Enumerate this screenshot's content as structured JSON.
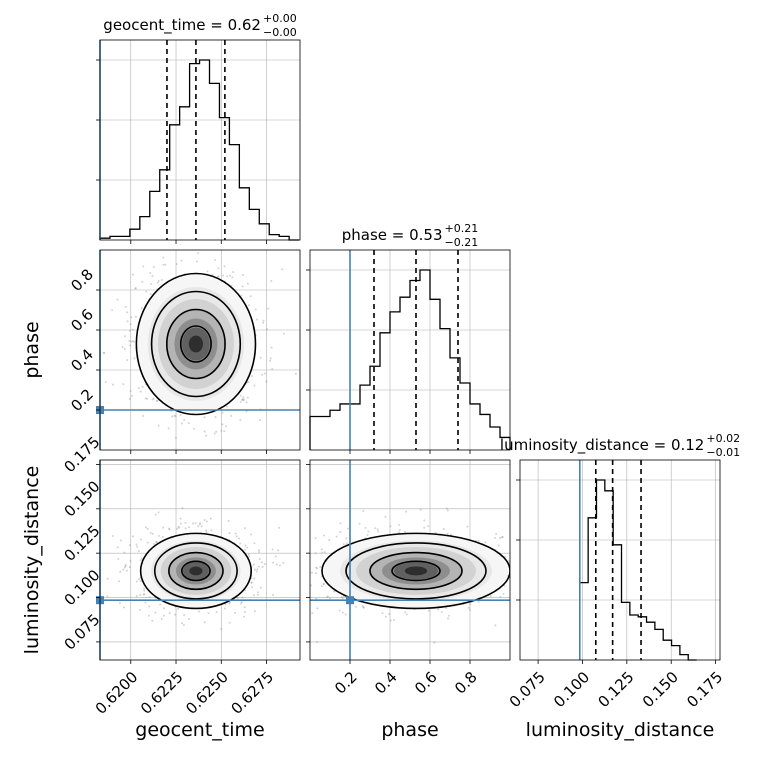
{
  "chart_data": {
    "type": "corner",
    "truth_color": "#4682b4",
    "parameters": [
      {
        "name": "geocent_time",
        "label": "geocent_time",
        "title": "geocent_time = 0.62",
        "title_sup": "+0.00",
        "title_sub": "−0.00",
        "range": [
          0.6183,
          0.62935
        ],
        "ticks": [
          0.62,
          0.6225,
          0.625,
          0.6275
        ],
        "tick_labels": [
          "0.6200",
          "0.6225",
          "0.6250",
          "0.6275"
        ],
        "truth": 0.6183,
        "quantiles": [
          0.622,
          0.6236,
          0.6252
        ],
        "hist_edges_start": 0.6183,
        "hist_bin_width": 0.00055,
        "hist_counts": [
          0.01,
          0.02,
          0.02,
          0.06,
          0.13,
          0.27,
          0.39,
          0.64,
          0.74,
          0.98,
          1.0,
          0.87,
          0.68,
          0.53,
          0.29,
          0.17,
          0.09,
          0.03,
          0.02,
          0.0
        ]
      },
      {
        "name": "phase",
        "label": "phase",
        "title": "phase = 0.53",
        "title_sup": "+0.21",
        "title_sub": "−0.21",
        "range": [
          0.0,
          1.0
        ],
        "ticks": [
          0.2,
          0.4,
          0.6,
          0.8
        ],
        "tick_labels": [
          "0.2",
          "0.4",
          "0.6",
          "0.8"
        ],
        "truth": 0.2,
        "quantiles": [
          0.32,
          0.53,
          0.74
        ],
        "hist_edges_start": 0.0,
        "hist_bin_width": 0.05,
        "hist_counts": [
          0.16,
          0.16,
          0.19,
          0.22,
          0.22,
          0.31,
          0.4,
          0.56,
          0.66,
          0.73,
          0.81,
          0.86,
          0.72,
          0.58,
          0.44,
          0.32,
          0.22,
          0.17,
          0.11,
          0.06
        ]
      },
      {
        "name": "luminosity_distance",
        "label": "luminosity_distance",
        "title": "luminosity_distance = 0.12",
        "title_sup": "+0.02",
        "title_sub": "−0.01",
        "range": [
          0.0648,
          0.1775
        ],
        "ticks": [
          0.075,
          0.1,
          0.125,
          0.15,
          0.175
        ],
        "tick_labels": [
          "0.075",
          "0.100",
          "0.125",
          "0.150",
          "0.175"
        ],
        "truth": 0.0985,
        "quantiles": [
          0.1075,
          0.117,
          0.133
        ],
        "hist_edges_start": 0.0985,
        "hist_bin_width": 0.0047,
        "hist_counts": [
          0.43,
          0.79,
          1.0,
          0.94,
          0.64,
          0.32,
          0.25,
          0.24,
          0.21,
          0.17,
          0.11,
          0.08,
          0.03,
          0.0
        ]
      }
    ],
    "joint": [
      {
        "x": "geocent_time",
        "y": "phase",
        "center": [
          0.6236,
          0.53
        ],
        "spread": [
          0.0014,
          0.15
        ],
        "rho": 0.0
      },
      {
        "x": "geocent_time",
        "y": "luminosity_distance",
        "center": [
          0.6236,
          0.115
        ],
        "spread": [
          0.0013,
          0.009
        ],
        "rho": 0.0
      },
      {
        "x": "phase",
        "y": "luminosity_distance",
        "center": [
          0.53,
          0.115
        ],
        "spread": [
          0.2,
          0.009
        ],
        "rho": 0.0
      }
    ]
  }
}
